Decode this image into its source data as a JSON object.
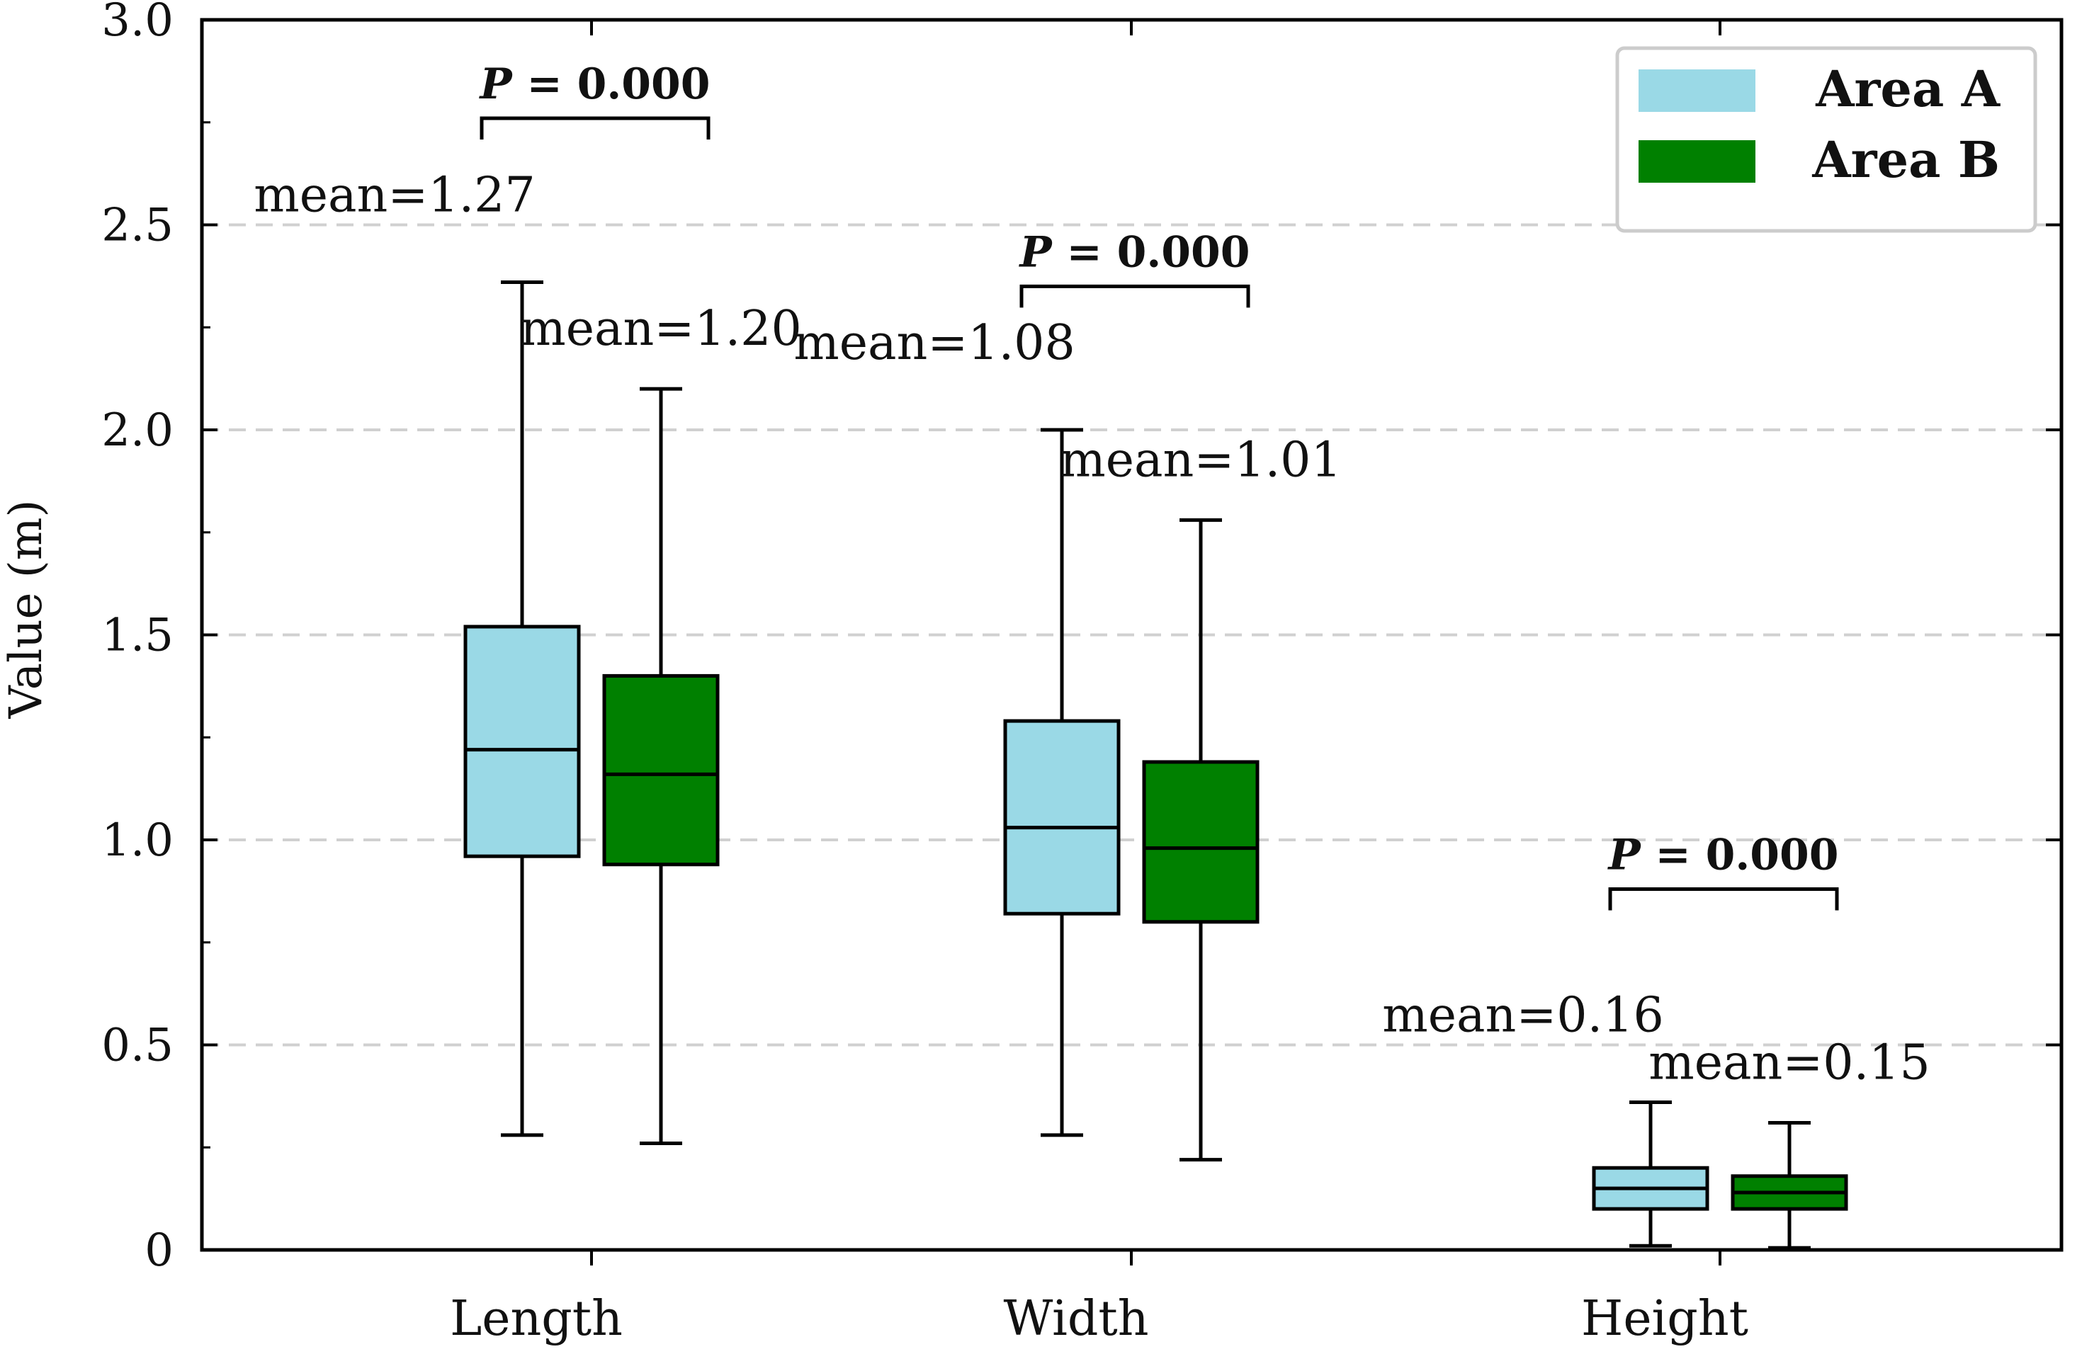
{
  "chart_data": {
    "type": "boxplot",
    "ylabel": "Value (m)",
    "xlabel": "",
    "ylim": [
      0,
      3.0
    ],
    "yticks": [
      0,
      0.5,
      1.0,
      1.5,
      2.0,
      2.5,
      3.0
    ],
    "ytick_labels": [
      "0",
      "0.5",
      "1.0",
      "1.5",
      "2.0",
      "2.5",
      "3.0"
    ],
    "grid": "horizontal dashed",
    "legend_position": "top-right",
    "categories": [
      "Length",
      "Width",
      "Height"
    ],
    "series": [
      {
        "name": "Area A",
        "color": "#9ad9e6",
        "boxes": [
          {
            "min": 0.28,
            "q1": 0.96,
            "median": 1.22,
            "q3": 1.52,
            "max": 2.36,
            "mean_label": "mean=1.27"
          },
          {
            "min": 0.28,
            "q1": 0.82,
            "median": 1.03,
            "q3": 1.29,
            "max": 2.0,
            "mean_label": "mean=1.08"
          },
          {
            "min": 0.01,
            "q1": 0.1,
            "median": 0.15,
            "q3": 0.2,
            "max": 0.36,
            "mean_label": "mean=0.16"
          }
        ]
      },
      {
        "name": "Area B",
        "color": "#008000",
        "boxes": [
          {
            "min": 0.26,
            "q1": 0.94,
            "median": 1.16,
            "q3": 1.4,
            "max": 2.1,
            "mean_label": "mean=1.20"
          },
          {
            "min": 0.22,
            "q1": 0.8,
            "median": 0.98,
            "q3": 1.19,
            "max": 1.78,
            "mean_label": "mean=1.01"
          },
          {
            "min": 0.005,
            "q1": 0.1,
            "median": 0.14,
            "q3": 0.18,
            "max": 0.31,
            "mean_label": "mean=0.15"
          }
        ]
      }
    ],
    "annotations": [
      {
        "category": "Length",
        "text_italic": "P",
        "text_rest": " = 0.000",
        "y": 2.76
      },
      {
        "category": "Width",
        "text_italic": "P",
        "text_rest": " = 0.000",
        "y": 2.35
      },
      {
        "category": "Height",
        "text_italic": "P",
        "text_rest": " = 0.000",
        "y": 0.88
      }
    ]
  }
}
